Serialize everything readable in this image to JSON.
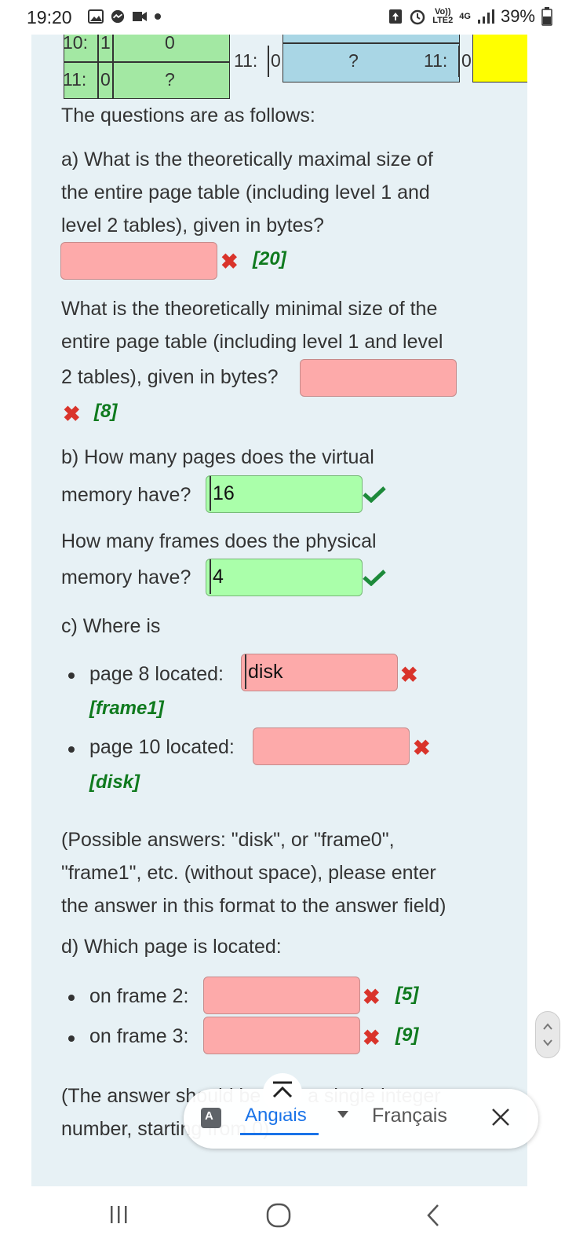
{
  "status": {
    "time": "19:20",
    "net_top": "Vo))",
    "net_bottom": "LTE2",
    "net_type": "4G",
    "battery": "39%"
  },
  "table": {
    "left_row1_key": "10:",
    "left_row1_bit": "1",
    "left_row1_val": "0",
    "left_row2_key": "11:",
    "left_row2_bit": "0",
    "left_row2_val": "?",
    "mid_key": "11:",
    "mid_bit": "0",
    "mid_val": "?",
    "right_key": "11:",
    "right_bit": "0"
  },
  "intro": "The questions are as follows:",
  "qa": {
    "line1": "a) What is the theoretically maximal size of",
    "line2": "the entire page table (including level 1 and",
    "line3": "level 2 tables), given in bytes?",
    "input_value": "",
    "feedback": "[20]"
  },
  "qa2": {
    "line1": "What is the theoretically minimal size of the",
    "line2": "entire page table (including level 1 and level",
    "line3": "2 tables), given in bytes?",
    "input_value": "",
    "feedback": "[8]"
  },
  "qb": {
    "line1": "b) How many pages does the virtual",
    "line2": "memory have?",
    "input_value": "16"
  },
  "qb2": {
    "line1": "How many frames does the physical",
    "line2": "memory have?",
    "input_value": "4"
  },
  "qc": {
    "heading": "c) Where is",
    "item1_label": "page 8 located:",
    "item1_value": "disk",
    "item1_feedback": "[frame1]",
    "item2_label": "page 10 located:",
    "item2_value": "",
    "item2_feedback": "[disk]"
  },
  "note": {
    "line1": "(Possible answers: \"disk\", or \"frame0\",",
    "line2": "\"frame1\", etc. (without space), please enter",
    "line3": "the answer in this format to the answer field)"
  },
  "qd": {
    "heading": "d) Which page is located:",
    "item1_label": "on frame 2:",
    "item1_feedback": "[5]",
    "item2_label": "on frame 3:",
    "item2_feedback": "[9]"
  },
  "footer_note": {
    "line1": "(The answer should be only a single integer",
    "line2": "number, starting from 0)"
  },
  "translate_bar": {
    "source_lang": "Anglais",
    "target_lang": "Français"
  },
  "colors": {
    "panel_bg": "#e7f1f5",
    "wrong_input": "#fdaaaa",
    "right_input": "#aaffaa",
    "feedback_green": "#0f7a1e",
    "wrong_mark": "#d9342b",
    "table_green": "#a3e8a3",
    "table_blue": "#a9d6e5",
    "table_yellow": "#ffff00"
  }
}
